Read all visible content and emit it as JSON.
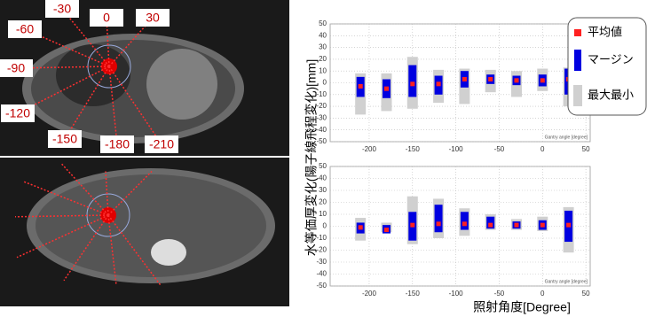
{
  "ct_image": {
    "angle_labels": [
      "-30",
      "0",
      "30",
      "-60",
      "-90",
      "-120",
      "-150",
      "-180",
      "-210"
    ]
  },
  "chart_data": [
    {
      "type": "range-bar",
      "ylabel": "水等価厚変化(陽子線飛程変化)[mm]",
      "xnote": "Gantry angle [degree]",
      "x": [
        -210,
        -180,
        -150,
        -120,
        -90,
        -60,
        -30,
        0,
        30
      ],
      "xlim": [
        -245,
        55
      ],
      "xticks": [
        -200,
        -150,
        -100,
        -50,
        0,
        50
      ],
      "ylim": [
        -50,
        50
      ],
      "yticks": [
        -50,
        -40,
        -30,
        -20,
        -10,
        0,
        10,
        20,
        30,
        40,
        50
      ],
      "grid": true,
      "series": [
        {
          "name": "最大最小",
          "color": "#d0d0d0",
          "low": [
            -27,
            -24,
            -22,
            -17,
            -18,
            -8,
            -12,
            -7,
            -20
          ],
          "high": [
            8,
            8,
            22,
            11,
            12,
            11,
            10,
            12,
            13
          ]
        },
        {
          "name": "マージン",
          "color": "#0000e0",
          "low": [
            -12,
            -13,
            -12,
            -10,
            -4,
            -1,
            -2,
            -3,
            -10
          ],
          "high": [
            5,
            3,
            15,
            6,
            10,
            7,
            6,
            7,
            12
          ]
        },
        {
          "name": "平均値",
          "color": "#ff2020",
          "values": [
            -3,
            -5,
            -1,
            -1,
            3,
            3,
            2,
            2,
            3
          ]
        }
      ]
    },
    {
      "type": "range-bar",
      "xlabel": "照射角度[Degree]",
      "xnote": "Gantry angle [degree]",
      "x": [
        -210,
        -180,
        -150,
        -120,
        -90,
        -60,
        -30,
        0,
        30
      ],
      "xlim": [
        -245,
        55
      ],
      "xticks": [
        -200,
        -150,
        -100,
        -50,
        0,
        50
      ],
      "ylim": [
        -50,
        50
      ],
      "yticks": [
        -50,
        -40,
        -30,
        -20,
        -10,
        0,
        10,
        20,
        30,
        40,
        50
      ],
      "grid": true,
      "series": [
        {
          "name": "最大最小",
          "color": "#d0d0d0",
          "low": [
            -12,
            -5,
            -15,
            -10,
            -8,
            -3,
            -3,
            -4,
            -22
          ],
          "high": [
            7,
            3,
            25,
            23,
            15,
            10,
            6,
            8,
            16
          ]
        },
        {
          "name": "マージン",
          "color": "#0000e0",
          "low": [
            -6,
            -6,
            -12,
            -5,
            -3,
            -2,
            -2,
            -3,
            -13
          ],
          "high": [
            3,
            1,
            12,
            18,
            12,
            8,
            4,
            5,
            13
          ]
        },
        {
          "name": "平均値",
          "color": "#ff2020",
          "values": [
            -1,
            -3,
            1,
            2,
            2,
            1,
            1,
            1,
            1
          ]
        }
      ]
    }
  ]
}
